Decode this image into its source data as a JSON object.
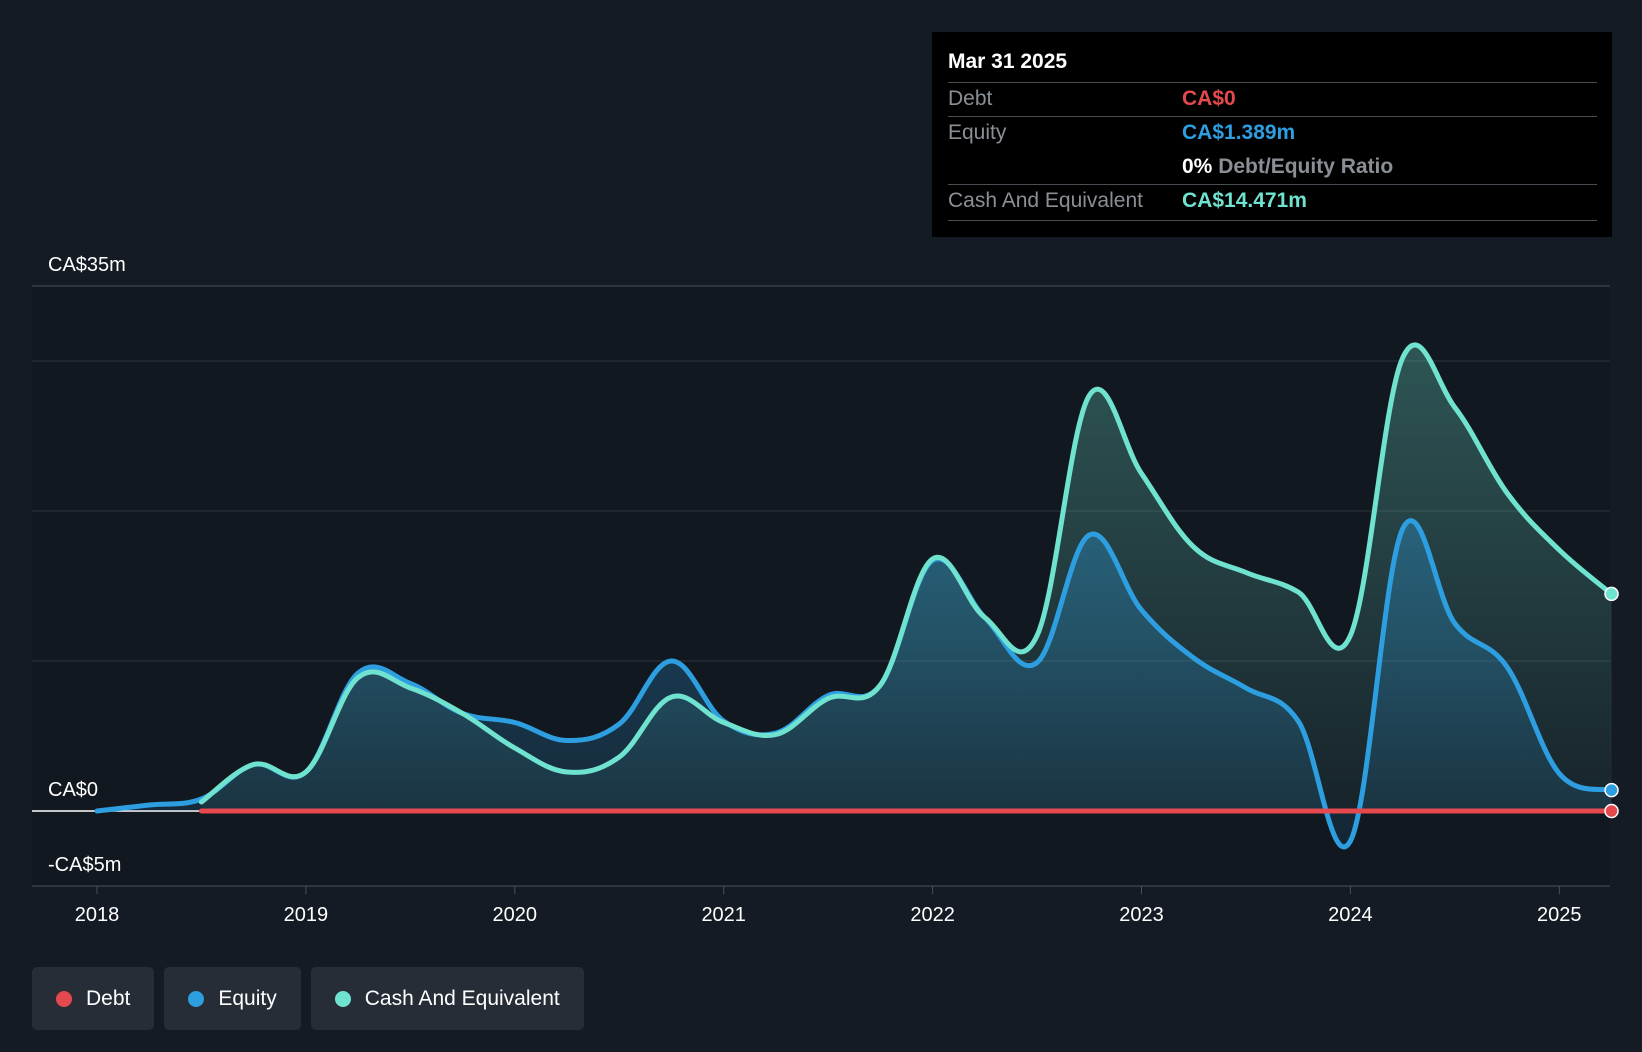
{
  "tooltip": {
    "date": "Mar 31 2025",
    "debt_label": "Debt",
    "debt_value": "CA$0",
    "equity_label": "Equity",
    "equity_value": "CA$1.389m",
    "ratio_value": "0%",
    "ratio_label": "Debt/Equity Ratio",
    "cash_label": "Cash And Equivalent",
    "cash_value": "CA$14.471m"
  },
  "legend": [
    {
      "label": "Debt",
      "color": "#e5484d"
    },
    {
      "label": "Equity",
      "color": "#2d9ee0"
    },
    {
      "label": "Cash And Equivalent",
      "color": "#6fe3cf"
    }
  ],
  "chart_data": {
    "type": "area",
    "title": "",
    "xlabel": "",
    "ylabel": "",
    "ylim": [
      -5,
      35
    ],
    "y_tick_labels": [
      {
        "value": 35,
        "label": "CA$35m"
      },
      {
        "value": 0,
        "label": "CA$0"
      },
      {
        "value": -5,
        "label": "-CA$5m"
      }
    ],
    "gridlines": [
      35,
      30,
      20,
      10,
      0,
      -5
    ],
    "xlim": [
      2017.7,
      2025.25
    ],
    "x_ticks": [
      2018,
      2019,
      2020,
      2021,
      2022,
      2023,
      2024,
      2025
    ],
    "x_tick_labels": [
      "2018",
      "2019",
      "2020",
      "2021",
      "2022",
      "2023",
      "2024",
      "2025"
    ],
    "grid": true,
    "legend_position": "bottom-left",
    "series": [
      {
        "name": "Debt",
        "color": "#e5484d",
        "fill": false,
        "points": [
          [
            2018.5,
            0
          ],
          [
            2025.25,
            0
          ]
        ]
      },
      {
        "name": "Equity",
        "color": "#2d9ee0",
        "fill": true,
        "points": [
          [
            2018.0,
            0
          ],
          [
            2018.25,
            0.4
          ],
          [
            2018.5,
            0.8
          ],
          [
            2018.75,
            3.1
          ],
          [
            2019.0,
            2.6
          ],
          [
            2019.25,
            9.2
          ],
          [
            2019.5,
            8.5
          ],
          [
            2019.75,
            6.5
          ],
          [
            2020.0,
            5.9
          ],
          [
            2020.25,
            4.7
          ],
          [
            2020.5,
            5.8
          ],
          [
            2020.75,
            10.0
          ],
          [
            2021.0,
            6.0
          ],
          [
            2021.25,
            5.2
          ],
          [
            2021.5,
            7.7
          ],
          [
            2021.75,
            8.4
          ],
          [
            2022.0,
            16.7
          ],
          [
            2022.25,
            12.9
          ],
          [
            2022.5,
            9.9
          ],
          [
            2022.75,
            18.4
          ],
          [
            2023.0,
            13.4
          ],
          [
            2023.25,
            10.2
          ],
          [
            2023.5,
            8.2
          ],
          [
            2023.75,
            6.0
          ],
          [
            2024.0,
            -2.0
          ],
          [
            2024.25,
            18.8
          ],
          [
            2024.5,
            12.5
          ],
          [
            2024.75,
            9.6
          ],
          [
            2025.0,
            2.5
          ],
          [
            2025.25,
            1.389
          ]
        ]
      },
      {
        "name": "Cash And Equivalent",
        "color": "#6fe3cf",
        "fill": true,
        "points": [
          [
            2018.5,
            0.6
          ],
          [
            2018.75,
            3.1
          ],
          [
            2019.0,
            2.6
          ],
          [
            2019.25,
            8.9
          ],
          [
            2019.5,
            8.2
          ],
          [
            2019.75,
            6.5
          ],
          [
            2020.0,
            4.2
          ],
          [
            2020.25,
            2.6
          ],
          [
            2020.5,
            3.6
          ],
          [
            2020.75,
            7.6
          ],
          [
            2021.0,
            5.9
          ],
          [
            2021.25,
            5.1
          ],
          [
            2021.5,
            7.5
          ],
          [
            2021.75,
            8.4
          ],
          [
            2022.0,
            16.8
          ],
          [
            2022.25,
            12.9
          ],
          [
            2022.5,
            11.7
          ],
          [
            2022.75,
            27.7
          ],
          [
            2023.0,
            22.5
          ],
          [
            2023.25,
            17.6
          ],
          [
            2023.5,
            15.9
          ],
          [
            2023.75,
            14.6
          ],
          [
            2024.0,
            11.7
          ],
          [
            2024.25,
            30.2
          ],
          [
            2024.5,
            26.9
          ],
          [
            2024.75,
            21.2
          ],
          [
            2025.0,
            17.4
          ],
          [
            2025.25,
            14.471
          ]
        ]
      }
    ]
  }
}
